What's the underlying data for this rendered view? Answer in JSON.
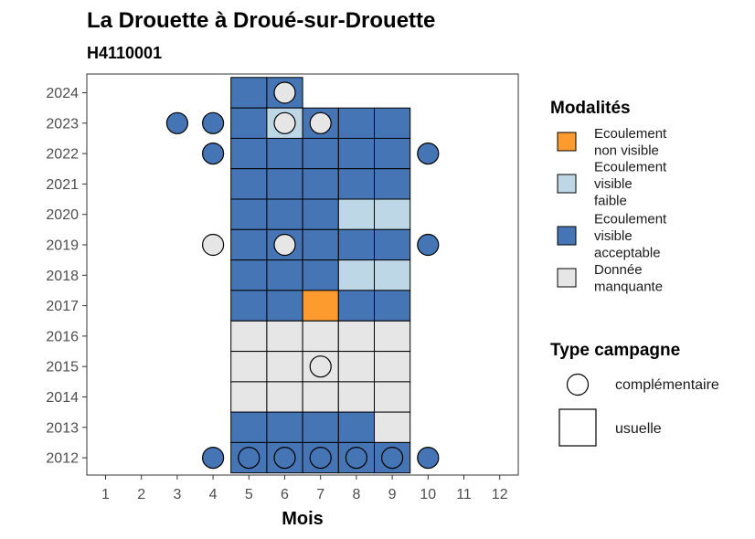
{
  "chart_data": {
    "type": "heatmap",
    "title": "La Drouette à Droué-sur-Drouette",
    "subtitle": "H4110001",
    "xlabel": "Mois",
    "x_ticks": [
      "1",
      "2",
      "3",
      "4",
      "5",
      "6",
      "7",
      "8",
      "9",
      "10",
      "11",
      "12"
    ],
    "y_ticks": [
      "2012",
      "2013",
      "2014",
      "2015",
      "2016",
      "2017",
      "2018",
      "2019",
      "2020",
      "2021",
      "2022",
      "2023",
      "2024"
    ],
    "legend_modalites": {
      "title": "Modalités",
      "items": [
        {
          "key": "ecoulement_non_visible",
          "lines": [
            "Ecoulement",
            "non visible"
          ],
          "color": "#FE9B2F"
        },
        {
          "key": "ecoulement_visible_faible",
          "lines": [
            "Ecoulement",
            "visible",
            "faible"
          ],
          "color": "#BDD7E7"
        },
        {
          "key": "ecoulement_visible_acceptable",
          "lines": [
            "Ecoulement",
            "visible",
            "acceptable"
          ],
          "color": "#4575B4"
        },
        {
          "key": "donnee_manquante",
          "lines": [
            "Donnée",
            "manquante"
          ],
          "color": "#E6E6E6"
        }
      ]
    },
    "legend_campagne": {
      "title": "Type campagne",
      "items": [
        {
          "key": "complementaire",
          "label": "complémentaire",
          "shape": "circle"
        },
        {
          "key": "usuelle",
          "label": "usuelle",
          "shape": "square"
        }
      ]
    },
    "usuelle": [
      {
        "year": 2024,
        "month": 5,
        "mod": "ecoulement_visible_acceptable"
      },
      {
        "year": 2024,
        "month": 6,
        "mod": "ecoulement_visible_acceptable"
      },
      {
        "year": 2023,
        "month": 5,
        "mod": "ecoulement_visible_acceptable"
      },
      {
        "year": 2023,
        "month": 6,
        "mod": "ecoulement_visible_faible"
      },
      {
        "year": 2023,
        "month": 7,
        "mod": "ecoulement_visible_acceptable"
      },
      {
        "year": 2023,
        "month": 8,
        "mod": "ecoulement_visible_acceptable"
      },
      {
        "year": 2023,
        "month": 9,
        "mod": "ecoulement_visible_acceptable"
      },
      {
        "year": 2022,
        "month": 5,
        "mod": "ecoulement_visible_acceptable"
      },
      {
        "year": 2022,
        "month": 6,
        "mod": "ecoulement_visible_acceptable"
      },
      {
        "year": 2022,
        "month": 7,
        "mod": "ecoulement_visible_acceptable"
      },
      {
        "year": 2022,
        "month": 8,
        "mod": "ecoulement_visible_acceptable"
      },
      {
        "year": 2022,
        "month": 9,
        "mod": "ecoulement_visible_acceptable"
      },
      {
        "year": 2021,
        "month": 5,
        "mod": "ecoulement_visible_acceptable"
      },
      {
        "year": 2021,
        "month": 6,
        "mod": "ecoulement_visible_acceptable"
      },
      {
        "year": 2021,
        "month": 7,
        "mod": "ecoulement_visible_acceptable"
      },
      {
        "year": 2021,
        "month": 8,
        "mod": "ecoulement_visible_acceptable"
      },
      {
        "year": 2021,
        "month": 9,
        "mod": "ecoulement_visible_acceptable"
      },
      {
        "year": 2020,
        "month": 5,
        "mod": "ecoulement_visible_acceptable"
      },
      {
        "year": 2020,
        "month": 6,
        "mod": "ecoulement_visible_acceptable"
      },
      {
        "year": 2020,
        "month": 7,
        "mod": "ecoulement_visible_acceptable"
      },
      {
        "year": 2020,
        "month": 8,
        "mod": "ecoulement_visible_faible"
      },
      {
        "year": 2020,
        "month": 9,
        "mod": "ecoulement_visible_faible"
      },
      {
        "year": 2019,
        "month": 5,
        "mod": "ecoulement_visible_acceptable"
      },
      {
        "year": 2019,
        "month": 6,
        "mod": "ecoulement_visible_acceptable"
      },
      {
        "year": 2019,
        "month": 7,
        "mod": "ecoulement_visible_acceptable"
      },
      {
        "year": 2019,
        "month": 8,
        "mod": "ecoulement_visible_acceptable"
      },
      {
        "year": 2019,
        "month": 9,
        "mod": "ecoulement_visible_acceptable"
      },
      {
        "year": 2018,
        "month": 5,
        "mod": "ecoulement_visible_acceptable"
      },
      {
        "year": 2018,
        "month": 6,
        "mod": "ecoulement_visible_acceptable"
      },
      {
        "year": 2018,
        "month": 7,
        "mod": "ecoulement_visible_acceptable"
      },
      {
        "year": 2018,
        "month": 8,
        "mod": "ecoulement_visible_faible"
      },
      {
        "year": 2018,
        "month": 9,
        "mod": "ecoulement_visible_faible"
      },
      {
        "year": 2017,
        "month": 5,
        "mod": "ecoulement_visible_acceptable"
      },
      {
        "year": 2017,
        "month": 6,
        "mod": "ecoulement_visible_acceptable"
      },
      {
        "year": 2017,
        "month": 7,
        "mod": "ecoulement_non_visible"
      },
      {
        "year": 2017,
        "month": 8,
        "mod": "ecoulement_visible_acceptable"
      },
      {
        "year": 2017,
        "month": 9,
        "mod": "ecoulement_visible_acceptable"
      },
      {
        "year": 2016,
        "month": 5,
        "mod": "donnee_manquante"
      },
      {
        "year": 2016,
        "month": 6,
        "mod": "donnee_manquante"
      },
      {
        "year": 2016,
        "month": 7,
        "mod": "donnee_manquante"
      },
      {
        "year": 2016,
        "month": 8,
        "mod": "donnee_manquante"
      },
      {
        "year": 2016,
        "month": 9,
        "mod": "donnee_manquante"
      },
      {
        "year": 2015,
        "month": 5,
        "mod": "donnee_manquante"
      },
      {
        "year": 2015,
        "month": 6,
        "mod": "donnee_manquante"
      },
      {
        "year": 2015,
        "month": 7,
        "mod": "donnee_manquante"
      },
      {
        "year": 2015,
        "month": 8,
        "mod": "donnee_manquante"
      },
      {
        "year": 2015,
        "month": 9,
        "mod": "donnee_manquante"
      },
      {
        "year": 2014,
        "month": 5,
        "mod": "donnee_manquante"
      },
      {
        "year": 2014,
        "month": 6,
        "mod": "donnee_manquante"
      },
      {
        "year": 2014,
        "month": 7,
        "mod": "donnee_manquante"
      },
      {
        "year": 2014,
        "month": 8,
        "mod": "donnee_manquante"
      },
      {
        "year": 2014,
        "month": 9,
        "mod": "donnee_manquante"
      },
      {
        "year": 2013,
        "month": 5,
        "mod": "ecoulement_visible_acceptable"
      },
      {
        "year": 2013,
        "month": 6,
        "mod": "ecoulement_visible_acceptable"
      },
      {
        "year": 2013,
        "month": 7,
        "mod": "ecoulement_visible_acceptable"
      },
      {
        "year": 2013,
        "month": 8,
        "mod": "ecoulement_visible_acceptable"
      },
      {
        "year": 2013,
        "month": 9,
        "mod": "donnee_manquante"
      },
      {
        "year": 2012,
        "month": 5,
        "mod": "ecoulement_visible_acceptable"
      },
      {
        "year": 2012,
        "month": 6,
        "mod": "ecoulement_visible_acceptable"
      },
      {
        "year": 2012,
        "month": 7,
        "mod": "ecoulement_visible_acceptable"
      },
      {
        "year": 2012,
        "month": 8,
        "mod": "ecoulement_visible_acceptable"
      },
      {
        "year": 2012,
        "month": 9,
        "mod": "ecoulement_visible_acceptable"
      }
    ],
    "complementaire": [
      {
        "year": 2024,
        "month": 6,
        "mod": "donnee_manquante"
      },
      {
        "year": 2023,
        "month": 3,
        "mod": "ecoulement_visible_acceptable"
      },
      {
        "year": 2023,
        "month": 4,
        "mod": "ecoulement_visible_acceptable"
      },
      {
        "year": 2023,
        "month": 6,
        "mod": "donnee_manquante"
      },
      {
        "year": 2023,
        "month": 7,
        "mod": "donnee_manquante"
      },
      {
        "year": 2022,
        "month": 4,
        "mod": "ecoulement_visible_acceptable"
      },
      {
        "year": 2022,
        "month": 10,
        "mod": "ecoulement_visible_acceptable"
      },
      {
        "year": 2019,
        "month": 4,
        "mod": "donnee_manquante"
      },
      {
        "year": 2019,
        "month": 6,
        "mod": "donnee_manquante"
      },
      {
        "year": 2019,
        "month": 10,
        "mod": "ecoulement_visible_acceptable"
      },
      {
        "year": 2015,
        "month": 7,
        "mod": "donnee_manquante"
      },
      {
        "year": 2012,
        "month": 4,
        "mod": "ecoulement_visible_acceptable"
      },
      {
        "year": 2012,
        "month": 5,
        "mod": "ecoulement_visible_acceptable"
      },
      {
        "year": 2012,
        "month": 6,
        "mod": "ecoulement_visible_acceptable"
      },
      {
        "year": 2012,
        "month": 7,
        "mod": "ecoulement_visible_acceptable"
      },
      {
        "year": 2012,
        "month": 8,
        "mod": "ecoulement_visible_acceptable"
      },
      {
        "year": 2012,
        "month": 9,
        "mod": "ecoulement_visible_acceptable"
      },
      {
        "year": 2012,
        "month": 10,
        "mod": "ecoulement_visible_acceptable"
      }
    ]
  }
}
